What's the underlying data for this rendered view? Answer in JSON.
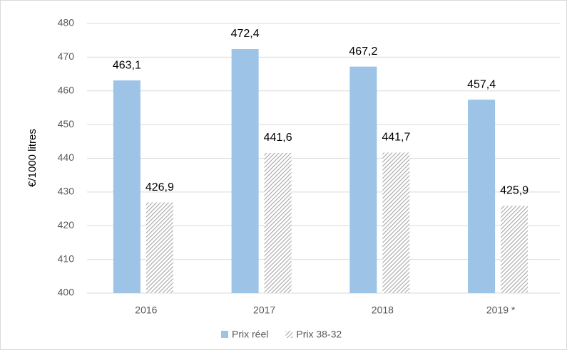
{
  "chart_data": {
    "type": "bar",
    "y_label": "€/1000 litres",
    "categories": [
      "2016",
      "2017",
      "2018",
      "2019 *"
    ],
    "series": [
      {
        "name": "Prix réel",
        "color": "#9dc3e6",
        "values": [
          463.1,
          472.4,
          467.2,
          457.4
        ],
        "value_labels": [
          "463,1",
          "472,4",
          "467,2",
          "457,4"
        ]
      },
      {
        "name": "Prix 38-32",
        "color": "#a6a6a6",
        "pattern": "hatch",
        "values": [
          426.9,
          441.6,
          441.7,
          425.9
        ],
        "value_labels": [
          "426,9",
          "441,6",
          "441,7",
          "425,9"
        ]
      }
    ],
    "ylim": [
      400,
      480
    ],
    "yticks": [
      400,
      410,
      420,
      430,
      440,
      450,
      460,
      470,
      480
    ],
    "grid": true,
    "legend": "bottom"
  }
}
